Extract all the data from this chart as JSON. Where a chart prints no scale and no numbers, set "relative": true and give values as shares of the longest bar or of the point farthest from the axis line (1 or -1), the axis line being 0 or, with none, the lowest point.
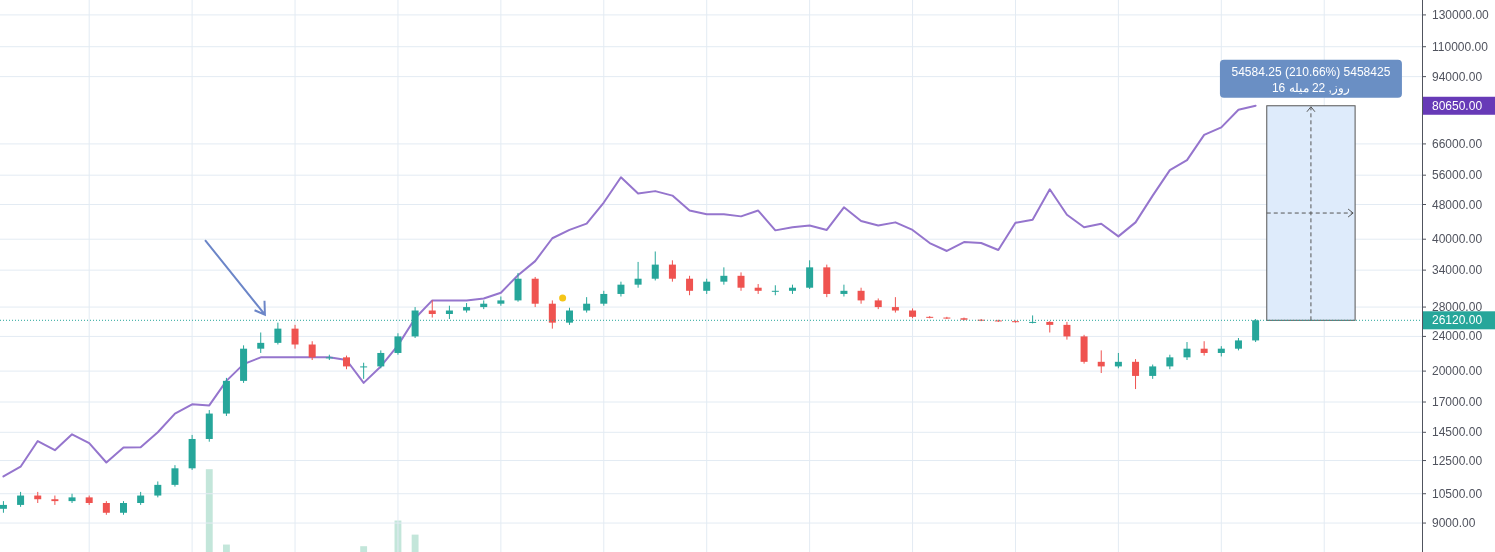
{
  "chart_data": [
    {
      "type": "candlestick",
      "log": "y",
      "grid": true,
      "categories": [
        null,
        null,
        null,
        null,
        null,
        null,
        null,
        null,
        null,
        null,
        null,
        null,
        null,
        null,
        null,
        null,
        null,
        null,
        null,
        null,
        null,
        null,
        null,
        null,
        null,
        null,
        null,
        null,
        null,
        null,
        null,
        null,
        null,
        null,
        null,
        null,
        null,
        null,
        null,
        null,
        null,
        null,
        null,
        null,
        null,
        null,
        null,
        null,
        null,
        null,
        null,
        null,
        null,
        null,
        null,
        null,
        null,
        null,
        null,
        null,
        null,
        null,
        null,
        null,
        null,
        null,
        null,
        null,
        null,
        null,
        null,
        null,
        null,
        null
      ],
      "ohlc": [
        [
          9700,
          10100,
          9500,
          9900
        ],
        [
          9900,
          10600,
          9800,
          10400
        ],
        [
          10400,
          10600,
          10000,
          10200
        ],
        [
          10200,
          10400,
          9900,
          10100
        ],
        [
          10100,
          10500,
          10000,
          10300
        ],
        [
          10300,
          10400,
          9900,
          10000
        ],
        [
          10000,
          10100,
          9400,
          9500
        ],
        [
          9500,
          10100,
          9400,
          10000
        ],
        [
          10000,
          10600,
          9900,
          10400
        ],
        [
          10400,
          11200,
          10300,
          11000
        ],
        [
          11000,
          12200,
          10900,
          12000
        ],
        [
          12000,
          14300,
          11900,
          14000
        ],
        [
          14000,
          16300,
          13800,
          16000
        ],
        [
          16000,
          19300,
          15800,
          19000
        ],
        [
          19000,
          22900,
          18800,
          22500
        ],
        [
          22500,
          24500,
          22000,
          23200
        ],
        [
          23200,
          25800,
          23000,
          25000
        ],
        [
          25000,
          25500,
          22500,
          23000
        ],
        [
          23000,
          23400,
          21200,
          21500
        ],
        [
          21500,
          21800,
          21200,
          21500
        ],
        [
          21500,
          21700,
          20200,
          20500
        ],
        [
          20500,
          20900,
          19200,
          20500
        ],
        [
          20500,
          22300,
          20300,
          22000
        ],
        [
          22000,
          24400,
          21800,
          24000
        ],
        [
          24000,
          28000,
          23800,
          27500
        ],
        [
          27500,
          29000,
          26500,
          27000
        ],
        [
          27000,
          28200,
          26300,
          27500
        ],
        [
          27500,
          28600,
          27200,
          28000
        ],
        [
          28000,
          29000,
          27700,
          28500
        ],
        [
          28500,
          29600,
          28200,
          29000
        ],
        [
          29000,
          33500,
          28800,
          32500
        ],
        [
          32500,
          32800,
          28000,
          28500
        ],
        [
          28500,
          29000,
          25000,
          25800
        ],
        [
          25800,
          27900,
          25500,
          27500
        ],
        [
          27500,
          29500,
          27200,
          28500
        ],
        [
          28500,
          30500,
          28200,
          30000
        ],
        [
          30000,
          32000,
          29600,
          31500
        ],
        [
          31500,
          35500,
          31000,
          32500
        ],
        [
          32500,
          37500,
          32200,
          35000
        ],
        [
          35000,
          35800,
          32000,
          32500
        ],
        [
          32500,
          33000,
          29800,
          30500
        ],
        [
          30500,
          32500,
          30000,
          32000
        ],
        [
          32000,
          34500,
          31500,
          33000
        ],
        [
          33000,
          33600,
          30500,
          31000
        ],
        [
          31000,
          31600,
          30000,
          30500
        ],
        [
          30500,
          31400,
          29800,
          30500
        ],
        [
          30500,
          31500,
          30000,
          31000
        ],
        [
          31000,
          35800,
          30800,
          34500
        ],
        [
          34500,
          35000,
          29500,
          30000
        ],
        [
          30000,
          31500,
          29600,
          30500
        ],
        [
          30500,
          31000,
          28500,
          29000
        ],
        [
          29000,
          29300,
          27700,
          28000
        ],
        [
          28000,
          29500,
          27200,
          27500
        ],
        [
          27500,
          27800,
          26400,
          26600
        ],
        [
          26600,
          26700,
          26400,
          26500
        ],
        [
          26500,
          26600,
          26300,
          26400
        ],
        [
          26400,
          26500,
          26100,
          26200
        ],
        [
          26200,
          26300,
          26000,
          26100
        ],
        [
          26100,
          26200,
          25900,
          26000
        ],
        [
          26000,
          26100,
          25800,
          25900
        ],
        [
          25900,
          26800,
          25700,
          25900
        ],
        [
          25900,
          26000,
          24500,
          25500
        ],
        [
          25500,
          25900,
          23600,
          24000
        ],
        [
          24000,
          24200,
          20800,
          21000
        ],
        [
          21000,
          22300,
          19800,
          20500
        ],
        [
          20500,
          22000,
          20300,
          21000
        ],
        [
          21000,
          21300,
          18200,
          19500
        ],
        [
          19500,
          20700,
          19200,
          20500
        ],
        [
          20500,
          21800,
          20200,
          21500
        ],
        [
          21500,
          23300,
          21200,
          22500
        ],
        [
          22500,
          23400,
          21700,
          22000
        ],
        [
          22000,
          22800,
          21600,
          22500
        ],
        [
          22500,
          23800,
          22300,
          23500
        ],
        [
          23500,
          26300,
          23300,
          26120
        ]
      ],
      "colors": [
        "#26a69a",
        "#26a69a",
        "#ef5350",
        "#ef5350",
        "#26a69a",
        "#ef5350",
        "#ef5350",
        "#26a69a",
        "#26a69a",
        "#26a69a",
        "#26a69a",
        "#26a69a",
        "#26a69a",
        "#26a69a",
        "#26a69a",
        "#26a69a",
        "#26a69a",
        "#ef5350",
        "#ef5350",
        "#26a69a",
        "#ef5350",
        "#26a69a",
        "#26a69a",
        "#26a69a",
        "#26a69a",
        "#ef5350",
        "#26a69a",
        "#26a69a",
        "#26a69a",
        "#26a69a",
        "#26a69a",
        "#ef5350",
        "#ef5350",
        "#26a69a",
        "#26a69a",
        "#26a69a",
        "#26a69a",
        "#26a69a",
        "#26a69a",
        "#ef5350",
        "#ef5350",
        "#26a69a",
        "#26a69a",
        "#ef5350",
        "#ef5350",
        "#26a69a",
        "#26a69a",
        "#26a69a",
        "#ef5350",
        "#26a69a",
        "#ef5350",
        "#ef5350",
        "#ef5350",
        "#ef5350",
        "#ef5350",
        "#ef5350",
        "#ef5350",
        "#ef5350",
        "#ef5350",
        "#ef5350",
        "#26a69a",
        "#ef5350",
        "#ef5350",
        "#ef5350",
        "#ef5350",
        "#26a69a",
        "#ef5350",
        "#26a69a",
        "#26a69a",
        "#26a69a",
        "#ef5350",
        "#26a69a",
        "#26a69a",
        "#26a69a"
      ],
      "series": [
        {
          "type": "line",
          "color": "#9575cd",
          "values": [
            11500,
            12100,
            13850,
            13200,
            14350,
            13700,
            12370,
            13380,
            13400,
            14500,
            16000,
            16800,
            16700,
            19000,
            20750,
            21500,
            21500,
            21500,
            21500,
            21500,
            21200,
            18800,
            20500,
            22900,
            26400,
            29000,
            29000,
            29000,
            29300,
            30200,
            33100,
            35650,
            40200,
            42000,
            43400,
            48500,
            55400,
            50850,
            51500,
            50300,
            46500,
            45600,
            45600,
            45100,
            46500,
            41900,
            42600,
            43000,
            42000,
            47300,
            44000,
            43000,
            43700,
            42000,
            39200,
            37600,
            39400,
            39200,
            37800,
            43600,
            44300,
            52000,
            45500,
            42600,
            43400,
            40600,
            43700,
            50300,
            57500,
            60600,
            69200,
            72000,
            79000,
            80650
          ]
        }
      ],
      "ylim": [
        7730,
        140600
      ],
      "yticks": [
        {
          "value": 9000,
          "label": "9000.00"
        },
        {
          "value": 10500,
          "label": "10500.00"
        },
        {
          "value": 12500,
          "label": "12500.00"
        },
        {
          "value": 14500,
          "label": "14500.00"
        },
        {
          "value": 17000,
          "label": "17000.00"
        },
        {
          "value": 20000,
          "label": "20000.00"
        },
        {
          "value": 24000,
          "label": "24000.00"
        },
        {
          "value": 28000,
          "label": "28000.00"
        },
        {
          "value": 34000,
          "label": "34000.00"
        },
        {
          "value": 40000,
          "label": "40000.00"
        },
        {
          "value": 48000,
          "label": "48000.00"
        },
        {
          "value": 56000,
          "label": "56000.00"
        },
        {
          "value": 66000,
          "label": "66000.00"
        },
        {
          "value": 94000,
          "label": "94000.00"
        },
        {
          "value": 110000,
          "label": "110000.00"
        },
        {
          "value": 130000,
          "label": "130000.00"
        }
      ],
      "ref_lines": [
        {
          "axis": "y",
          "value": 26120,
          "label": "26120.00",
          "color": "#26a69a",
          "line_style": "dotted"
        }
      ],
      "annotations": [
        "80650.00",
        "54584.25 (210.66%) 5458425\n16 روز, 22 میله"
      ]
    },
    {
      "type": "bar",
      "relative": true,
      "categories": [
        null,
        null,
        null,
        null,
        null,
        null,
        null,
        null,
        null,
        null,
        null,
        null,
        null,
        null,
        null,
        null,
        null,
        null,
        null,
        null,
        null,
        null,
        null,
        null,
        null,
        null,
        null,
        null,
        null,
        null,
        null,
        null,
        null,
        null,
        null,
        null,
        null,
        null,
        null,
        null,
        null,
        null,
        null,
        null,
        null,
        null,
        null,
        null,
        null,
        null,
        null,
        null,
        null,
        null,
        null,
        null,
        null,
        null,
        null,
        null,
        null,
        null,
        null,
        null,
        null,
        null,
        null,
        null,
        null,
        null,
        null,
        null,
        null,
        null
      ],
      "series": [
        {
          "color": "#c3e6da",
          "values": [
            null,
            null,
            null,
            null,
            null,
            null,
            null,
            null,
            null,
            null,
            null,
            null,
            1,
            0.09,
            null,
            null,
            null,
            null,
            null,
            null,
            null,
            0.07,
            null,
            0.38,
            0.21,
            null,
            null,
            null,
            null,
            null,
            null,
            null,
            null,
            null,
            null,
            null,
            null,
            null,
            null,
            null,
            null,
            null,
            null,
            null,
            null,
            null,
            null,
            null,
            null,
            null,
            null,
            null,
            null,
            null,
            null,
            null,
            null,
            null,
            null,
            null,
            null,
            null,
            null,
            null,
            null,
            null,
            null,
            null,
            null,
            null,
            null,
            null,
            null,
            null
          ]
        }
      ]
    }
  ]
}
